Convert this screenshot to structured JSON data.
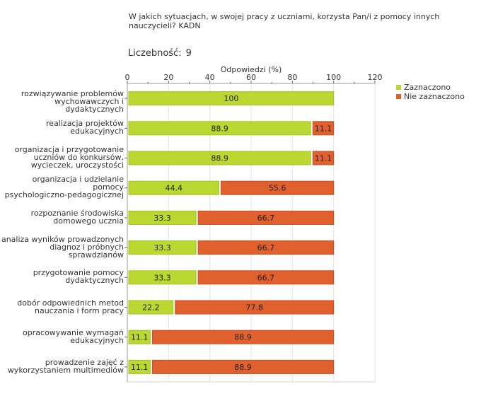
{
  "chart_data": {
    "type": "bar",
    "stacked": true,
    "orientation": "horizontal",
    "title": "W jakich sytuacjach, w swojej pracy z uczniami, korzysta Pan/i z pomocy innych nauczycieli? KADN",
    "count_label": "Liczebność:",
    "count_value": "9",
    "xlabel": "Odpowiedzi (%)",
    "xlim": [
      0,
      120
    ],
    "xticks": [
      0,
      20,
      40,
      60,
      80,
      100,
      120
    ],
    "categories": [
      "rozwiązywanie problemów wychowawczych i dydaktycznych",
      "realizacja projektów edukacyjnych",
      "organizacja i przygotowanie uczniów do konkursów, wycieczek, uroczystości",
      "organizacja i udzielanie pomocy psychologiczno-pedagogicznej",
      "rozpoznanie środowiska domowego ucznia",
      "analiza wyników prowadzonych diagnoz i próbnych sprawdzianów",
      "przygotowanie pomocy dydaktycznych",
      "dobór odpowiednich metod nauczania i form pracy",
      "opracowywanie wymagań edukacyjnych",
      "prowadzenie zajęć z wykorzystaniem multimediów"
    ],
    "category_lines": [
      [
        "rozwiązywanie problemów",
        "wychowawczych i dydaktycznych"
      ],
      [
        "realizacja projektów",
        "edukacyjnych"
      ],
      [
        "organizacja i przygotowanie",
        "uczniów do konkursów,",
        "wycieczek, uroczystości"
      ],
      [
        "organizacja i udzielanie",
        "pomocy",
        "psychologiczno-pedagogicznej"
      ],
      [
        "rozpoznanie środowiska",
        "domowego ucznia"
      ],
      [
        "analiza wyników prowadzonych",
        "diagnoz i próbnych",
        "sprawdzianów"
      ],
      [
        "przygotowanie pomocy",
        "dydaktycznych"
      ],
      [
        "dobór odpowiednich metod",
        "nauczania i form pracy"
      ],
      [
        "opracowywanie wymagań",
        "edukacyjnych"
      ],
      [
        "prowadzenie zajęć z",
        "wykorzystaniem multimediów"
      ]
    ],
    "series": [
      {
        "name": "Zaznaczono",
        "color": "#bbd832",
        "values": [
          100,
          88.9,
          88.9,
          44.4,
          33.3,
          33.3,
          33.3,
          22.2,
          11.1,
          11.1
        ],
        "labels": [
          "100",
          "88.9",
          "88.9",
          "44.4",
          "33.3",
          "33.3",
          "33.3",
          "22.2",
          "11.1",
          "11.1"
        ]
      },
      {
        "name": "Nie zaznaczono",
        "color": "#e0602e",
        "values": [
          0,
          11.1,
          11.1,
          55.6,
          66.7,
          66.7,
          66.7,
          77.8,
          88.9,
          88.9
        ],
        "labels": [
          "",
          "11.1",
          "11.1",
          "55.6",
          "66.7",
          "66.7",
          "66.7",
          "77.8",
          "88.9",
          "88.9"
        ]
      }
    ],
    "legend_position": "top-right"
  }
}
